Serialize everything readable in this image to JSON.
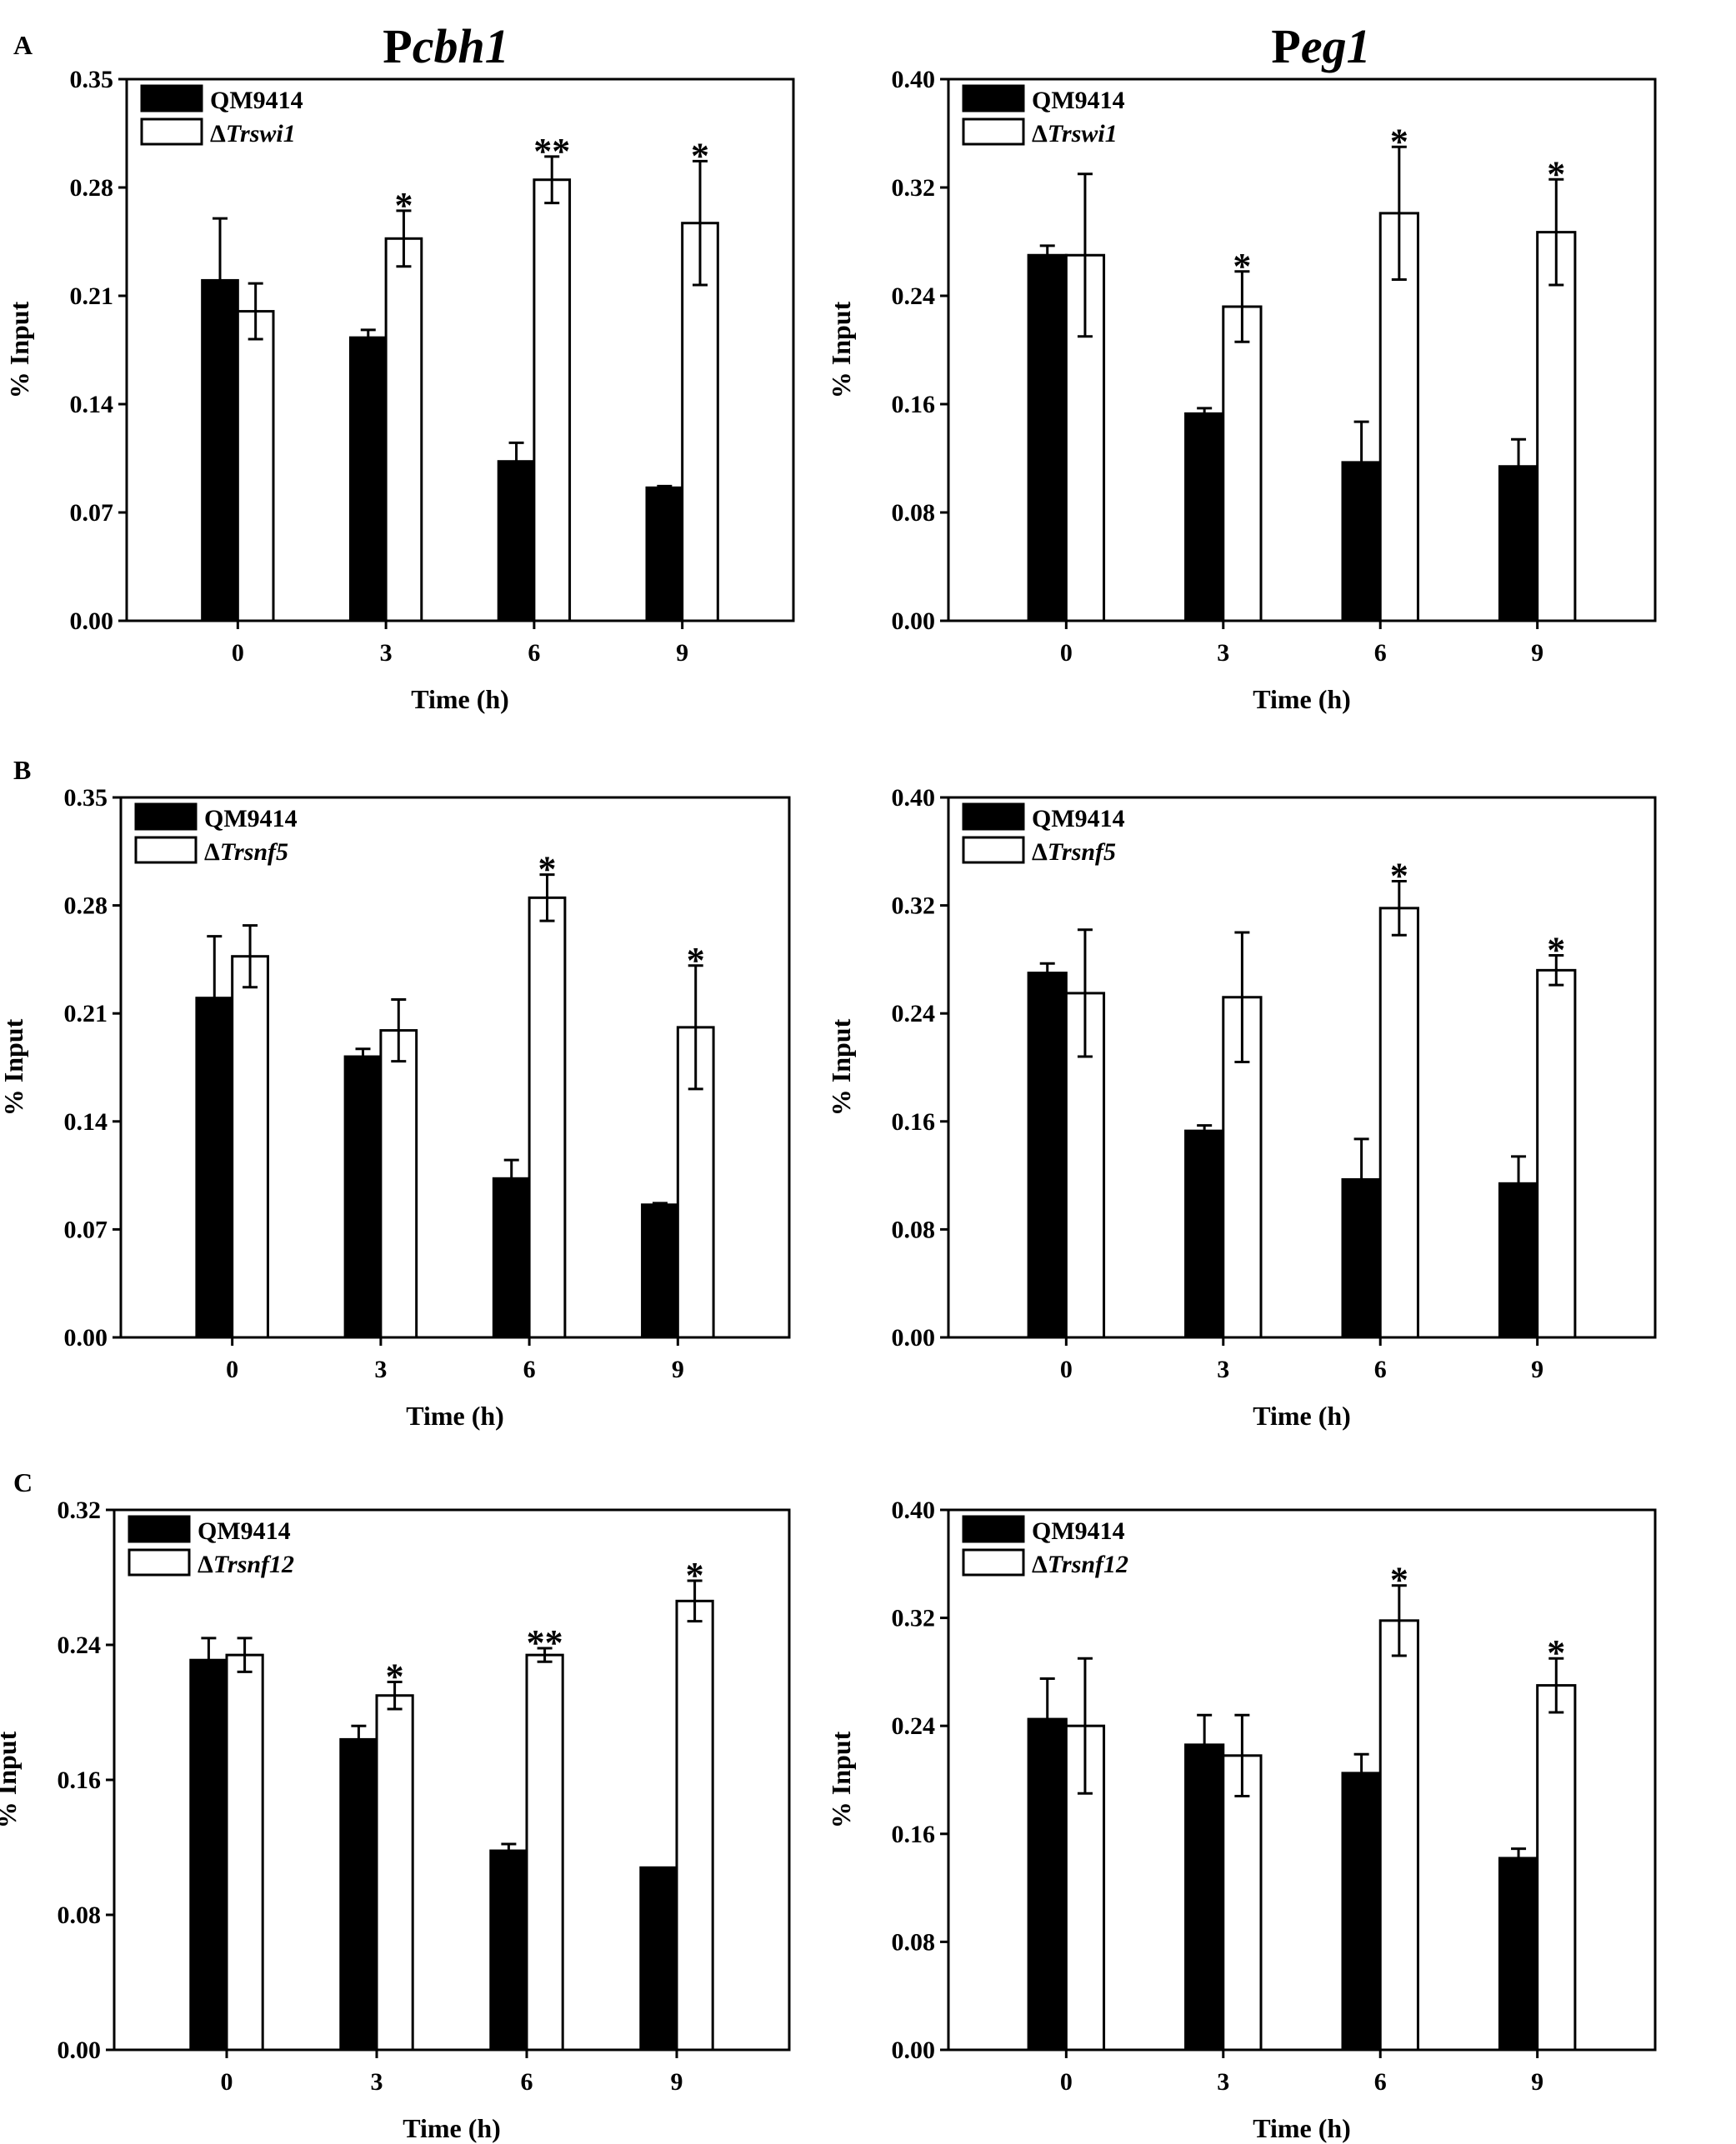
{
  "figure": {
    "column_titles": [
      {
        "prefix": "P",
        "gene": "cbh1"
      },
      {
        "prefix": "P",
        "gene": "eg1"
      }
    ],
    "row_letters": [
      "A",
      "B",
      "C"
    ]
  },
  "chart_data": [
    {
      "type": "bar",
      "row_letter": "A",
      "xlabel": "Time (h)",
      "ylabel": "% Input",
      "categories": [
        "0",
        "3",
        "6",
        "9"
      ],
      "ylim": [
        0,
        0.35
      ],
      "yticks": [
        "0.00",
        "0.07",
        "0.14",
        "0.21",
        "0.28",
        "0.35"
      ],
      "legend_position": "top-left",
      "series": [
        {
          "name": "QM9414",
          "delta": "",
          "italic": "",
          "fill": "#000000",
          "values": [
            0.22,
            0.183,
            0.103,
            0.086
          ],
          "errors": [
            0.04,
            0.005,
            0.012,
            0.001
          ]
        },
        {
          "name": "",
          "delta": "Δ",
          "italic": "Trswi1",
          "fill": "#ffffff",
          "values": [
            0.2,
            0.247,
            0.285,
            0.257
          ],
          "errors": [
            0.018,
            0.018,
            0.015,
            0.04
          ]
        }
      ],
      "significance": [
        "",
        "*",
        "**",
        "*"
      ]
    },
    {
      "type": "bar",
      "row_letter": "",
      "xlabel": "Time (h)",
      "ylabel": "% Input",
      "categories": [
        "0",
        "3",
        "6",
        "9"
      ],
      "ylim": [
        0,
        0.4
      ],
      "yticks": [
        "0.00",
        "0.08",
        "0.16",
        "0.24",
        "0.32",
        "0.40"
      ],
      "legend_position": "top-left",
      "series": [
        {
          "name": "QM9414",
          "delta": "",
          "italic": "",
          "fill": "#000000",
          "values": [
            0.27,
            0.153,
            0.117,
            0.114
          ],
          "errors": [
            0.007,
            0.004,
            0.03,
            0.02
          ]
        },
        {
          "name": "",
          "delta": "Δ",
          "italic": "Trswi1",
          "fill": "#ffffff",
          "values": [
            0.27,
            0.232,
            0.301,
            0.287
          ],
          "errors": [
            0.06,
            0.026,
            0.049,
            0.039
          ]
        }
      ],
      "significance": [
        "",
        "*",
        "*",
        "*"
      ]
    },
    {
      "type": "bar",
      "row_letter": "B",
      "xlabel": "Time (h)",
      "ylabel": "% Input",
      "categories": [
        "0",
        "3",
        "6",
        "9"
      ],
      "ylim": [
        0,
        0.35
      ],
      "yticks": [
        "0.00",
        "0.07",
        "0.14",
        "0.21",
        "0.28",
        "0.35"
      ],
      "legend_position": "top-left",
      "series": [
        {
          "name": "QM9414",
          "delta": "",
          "italic": "",
          "fill": "#000000",
          "values": [
            0.22,
            0.182,
            0.103,
            0.086
          ],
          "errors": [
            0.04,
            0.005,
            0.012,
            0.001
          ]
        },
        {
          "name": "",
          "delta": "Δ",
          "italic": "Trsnf5",
          "fill": "#ffffff",
          "values": [
            0.247,
            0.199,
            0.285,
            0.201
          ],
          "errors": [
            0.02,
            0.02,
            0.015,
            0.04
          ]
        }
      ],
      "significance": [
        "",
        "",
        "*",
        "*"
      ]
    },
    {
      "type": "bar",
      "row_letter": "",
      "xlabel": "Time (h)",
      "ylabel": "% Input",
      "categories": [
        "0",
        "3",
        "6",
        "9"
      ],
      "ylim": [
        0,
        0.4
      ],
      "yticks": [
        "0.00",
        "0.08",
        "0.16",
        "0.24",
        "0.32",
        "0.40"
      ],
      "legend_position": "top-left",
      "series": [
        {
          "name": "QM9414",
          "delta": "",
          "italic": "",
          "fill": "#000000",
          "values": [
            0.27,
            0.153,
            0.117,
            0.114
          ],
          "errors": [
            0.007,
            0.004,
            0.03,
            0.02
          ]
        },
        {
          "name": "",
          "delta": "Δ",
          "italic": "Trsnf5",
          "fill": "#ffffff",
          "values": [
            0.255,
            0.252,
            0.318,
            0.272
          ],
          "errors": [
            0.047,
            0.048,
            0.02,
            0.011
          ]
        }
      ],
      "significance": [
        "",
        "",
        "*",
        "*"
      ]
    },
    {
      "type": "bar",
      "row_letter": "C",
      "xlabel": "Time (h)",
      "ylabel": "% Input",
      "categories": [
        "0",
        "3",
        "6",
        "9"
      ],
      "ylim": [
        0,
        0.32
      ],
      "yticks": [
        "0.00",
        "0.08",
        "0.16",
        "0.24",
        "0.32"
      ],
      "legend_position": "top-left",
      "series": [
        {
          "name": "QM9414",
          "delta": "",
          "italic": "",
          "fill": "#000000",
          "values": [
            0.231,
            0.184,
            0.118,
            0.108
          ],
          "errors": [
            0.013,
            0.008,
            0.004,
            0.0
          ]
        },
        {
          "name": "",
          "delta": "Δ",
          "italic": "Trsnf12",
          "fill": "#ffffff",
          "values": [
            0.234,
            0.21,
            0.234,
            0.266
          ],
          "errors": [
            0.01,
            0.008,
            0.004,
            0.012
          ]
        }
      ],
      "significance": [
        "",
        "*",
        "**",
        "*"
      ]
    },
    {
      "type": "bar",
      "row_letter": "",
      "xlabel": "Time (h)",
      "ylabel": "% Input",
      "categories": [
        "0",
        "3",
        "6",
        "9"
      ],
      "ylim": [
        0,
        0.4
      ],
      "yticks": [
        "0.00",
        "0.08",
        "0.16",
        "0.24",
        "0.32",
        "0.40"
      ],
      "legend_position": "top-left",
      "series": [
        {
          "name": "QM9414",
          "delta": "",
          "italic": "",
          "fill": "#000000",
          "values": [
            0.245,
            0.226,
            0.205,
            0.142
          ],
          "errors": [
            0.03,
            0.022,
            0.014,
            0.007
          ]
        },
        {
          "name": "",
          "delta": "Δ",
          "italic": "Trsnf12",
          "fill": "#ffffff",
          "values": [
            0.24,
            0.218,
            0.318,
            0.27
          ],
          "errors": [
            0.05,
            0.03,
            0.026,
            0.02
          ]
        }
      ],
      "significance": [
        "",
        "",
        "*",
        "*"
      ]
    }
  ]
}
